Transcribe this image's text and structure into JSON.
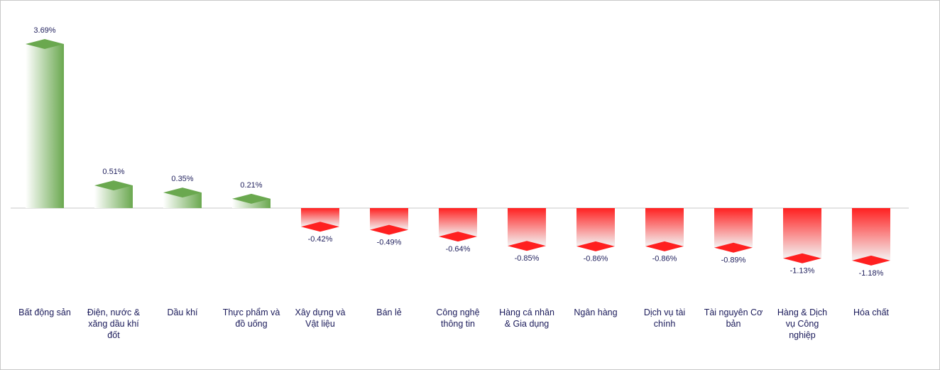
{
  "chart_data": {
    "type": "bar",
    "categories": [
      "Bất động sản",
      "Điện, nước & xăng dầu khí đốt",
      "Dầu khí",
      "Thực phẩm và đồ uống",
      "Xây dựng và Vật liệu",
      "Bán lẻ",
      "Công nghệ thông tin",
      "Hàng cá nhân & Gia dụng",
      "Ngân hàng",
      "Dịch vụ tài chính",
      "Tài nguyên Cơ bản",
      "Hàng & Dịch vụ Công nghiệp",
      "Hóa chất"
    ],
    "values": [
      3.69,
      0.51,
      0.35,
      0.21,
      -0.42,
      -0.49,
      -0.64,
      -0.85,
      -0.86,
      -0.86,
      -0.89,
      -1.13,
      -1.18
    ],
    "value_labels": [
      "3.69%",
      "0.51%",
      "0.35%",
      "0.21%",
      "-0.42%",
      "-0.49%",
      "-0.64%",
      "-0.85%",
      "-0.86%",
      "-0.86%",
      "-0.89%",
      "-1.13%",
      "-1.18%"
    ],
    "positive_color": "#6aa84f",
    "negative_color": "#ff2020"
  }
}
